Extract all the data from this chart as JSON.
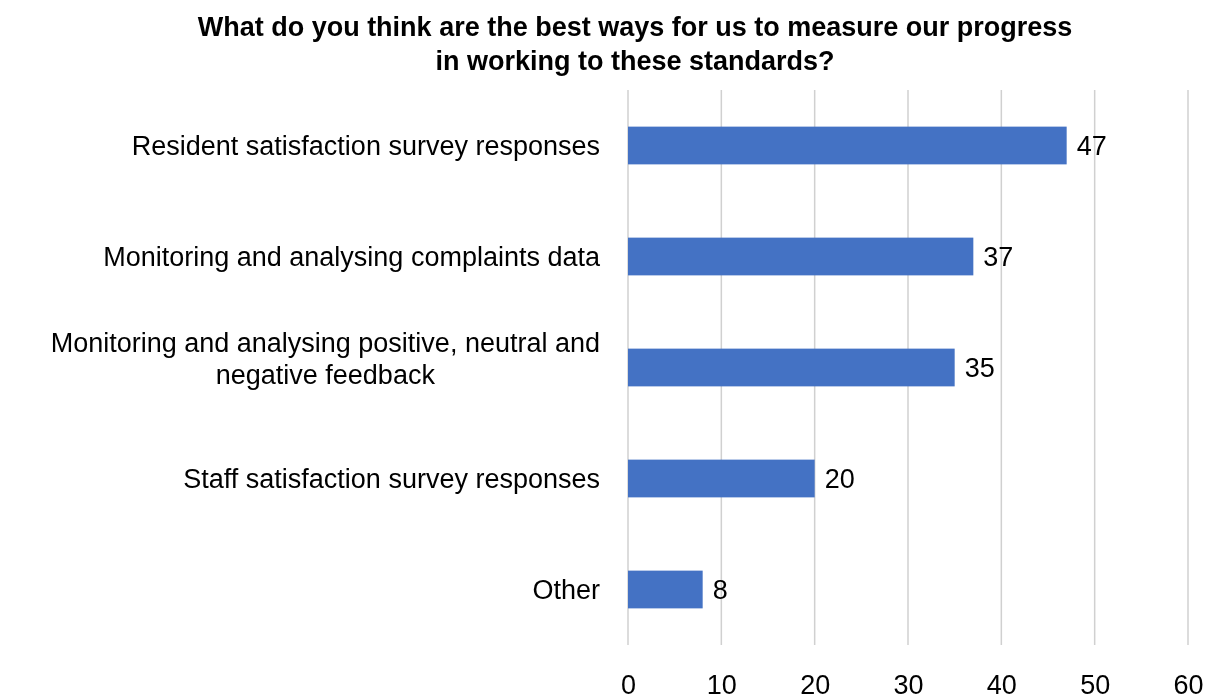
{
  "chart_data": {
    "type": "bar",
    "orientation": "horizontal",
    "title": "What do you think are the best ways for us to measure our progress in working to these standards?",
    "categories": [
      "Resident satisfaction survey responses",
      "Monitoring and analysing complaints data",
      "Monitoring and analysing positive, neutral and negative feedback",
      "Staff satisfaction survey responses",
      "Other"
    ],
    "values": [
      47,
      37,
      35,
      20,
      8
    ],
    "color": "#4472c4",
    "data_labels": true,
    "xlim": [
      0,
      60
    ],
    "xticks": [
      0,
      10,
      20,
      30,
      40,
      50,
      60
    ],
    "grid": "x"
  }
}
